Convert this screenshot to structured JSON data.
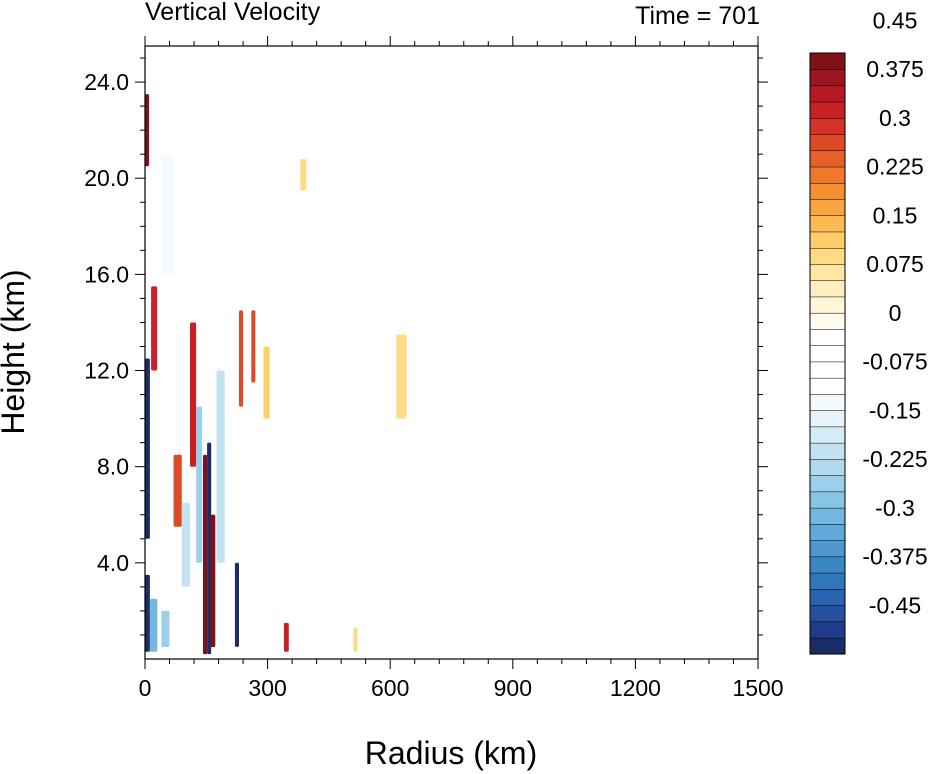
{
  "chart_data": {
    "type": "heatmap",
    "title_left": "Vertical Velocity",
    "title_right": "Time = 701",
    "xlabel": "Radius (km)",
    "ylabel": "Height (km)",
    "xlim": [
      0,
      1500
    ],
    "ylim": [
      0,
      25.5
    ],
    "xticks": [
      {
        "value": 0,
        "label": "0"
      },
      {
        "value": 300,
        "label": "300"
      },
      {
        "value": 600,
        "label": "600"
      },
      {
        "value": 900,
        "label": "900"
      },
      {
        "value": 1200,
        "label": "1200"
      },
      {
        "value": 1500,
        "label": "1500"
      }
    ],
    "yticks": [
      {
        "value": 4,
        "label": "4.0"
      },
      {
        "value": 8,
        "label": "8.0"
      },
      {
        "value": 12,
        "label": "12.0"
      },
      {
        "value": 16,
        "label": "16.0"
      },
      {
        "value": 20,
        "label": "20.0"
      },
      {
        "value": 24,
        "label": "24.0"
      }
    ],
    "colorbar": {
      "levels": [
        "#1a2d66",
        "#1e3c8a",
        "#2450a0",
        "#2a62b0",
        "#3175ba",
        "#3a87c4",
        "#4d99cf",
        "#60a9d8",
        "#74b8df",
        "#88c4e4",
        "#9ccfea",
        "#b0d9ee",
        "#c3e3f2",
        "#d5ecf6",
        "#e6f4fa",
        "#f4fafd",
        "#ffffff",
        "#ffffff",
        "#ffffff",
        "#ffffff",
        "#fffbee",
        "#fff5d9",
        "#ffefc0",
        "#ffe6a3",
        "#ffdb86",
        "#ffce6a",
        "#fcbb52",
        "#f9a53e",
        "#f58f32",
        "#ef782b",
        "#e66127",
        "#dd4a26",
        "#d33226",
        "#c72126",
        "#b51926",
        "#9b1522",
        "#7f1219"
      ],
      "tick_labels": [
        {
          "level": 3,
          "label": "-0.45"
        },
        {
          "level": 6,
          "label": "-0.375"
        },
        {
          "level": 9,
          "label": "-0.3"
        },
        {
          "level": 12,
          "label": "-0.225"
        },
        {
          "level": 15,
          "label": "-0.15"
        },
        {
          "level": 18,
          "label": "-0.075"
        },
        {
          "level": 21,
          "label": "0"
        },
        {
          "level": 24,
          "label": "0.075"
        },
        {
          "level": 27,
          "label": "0.15"
        },
        {
          "level": 30,
          "label": "0.225"
        },
        {
          "level": 33,
          "label": "0.3"
        },
        {
          "level": 36,
          "label": "0.375"
        },
        {
          "level": 39,
          "label": "0.45"
        }
      ]
    },
    "features": [
      {
        "r": [
          0,
          12
        ],
        "z": [
          0.3,
          3.5
        ],
        "w": -0.5
      },
      {
        "r": [
          0,
          12
        ],
        "z": [
          5.0,
          12.5
        ],
        "w": -0.5
      },
      {
        "r": [
          0,
          10
        ],
        "z": [
          20.5,
          23.5
        ],
        "w": 0.4
      },
      {
        "r": [
          12,
          30
        ],
        "z": [
          0.3,
          2.5
        ],
        "w": -0.3
      },
      {
        "r": [
          15,
          30
        ],
        "z": [
          12.0,
          15.5
        ],
        "w": 0.35
      },
      {
        "r": [
          40,
          60
        ],
        "z": [
          0.5,
          2.0
        ],
        "w": -0.25
      },
      {
        "r": [
          40,
          70
        ],
        "z": [
          16.0,
          21.0
        ],
        "w": -0.12
      },
      {
        "r": [
          70,
          90
        ],
        "z": [
          5.5,
          8.5
        ],
        "w": 0.3
      },
      {
        "r": [
          90,
          110
        ],
        "z": [
          3.0,
          6.5
        ],
        "w": -0.2
      },
      {
        "r": [
          110,
          125
        ],
        "z": [
          8.0,
          14.0
        ],
        "w": 0.35
      },
      {
        "r": [
          125,
          140
        ],
        "z": [
          4.0,
          10.5
        ],
        "w": -0.25
      },
      {
        "r": [
          142,
          152
        ],
        "z": [
          0.2,
          8.5
        ],
        "w": 0.55
      },
      {
        "r": [
          152,
          162
        ],
        "z": [
          0.2,
          9.0
        ],
        "w": -0.55
      },
      {
        "r": [
          160,
          172
        ],
        "z": [
          0.5,
          6.0
        ],
        "w": 0.45
      },
      {
        "r": [
          175,
          195
        ],
        "z": [
          4.0,
          12.0
        ],
        "w": -0.2
      },
      {
        "r": [
          220,
          230
        ],
        "z": [
          0.5,
          4.0
        ],
        "w": -0.55
      },
      {
        "r": [
          230,
          240
        ],
        "z": [
          10.5,
          14.5
        ],
        "w": 0.3
      },
      {
        "r": [
          260,
          270
        ],
        "z": [
          11.5,
          14.5
        ],
        "w": 0.3
      },
      {
        "r": [
          290,
          305
        ],
        "z": [
          10.0,
          13.0
        ],
        "w": 0.15
      },
      {
        "r": [
          340,
          352
        ],
        "z": [
          0.3,
          1.5
        ],
        "w": 0.35
      },
      {
        "r": [
          380,
          395
        ],
        "z": [
          19.5,
          20.8
        ],
        "w": 0.1
      },
      {
        "r": [
          510,
          520
        ],
        "z": [
          0.3,
          1.3
        ],
        "w": 0.12
      },
      {
        "r": [
          615,
          640
        ],
        "z": [
          10.0,
          13.5
        ],
        "w": 0.1
      }
    ]
  }
}
